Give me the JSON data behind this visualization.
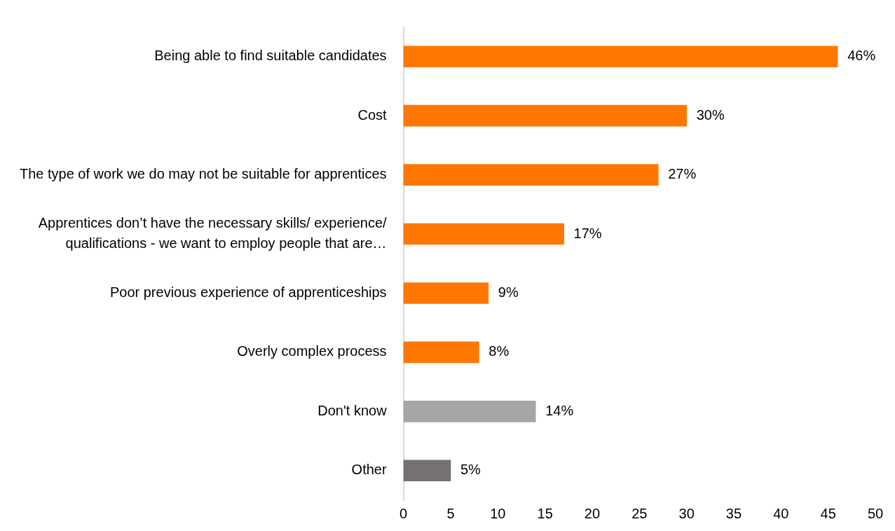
{
  "chart_data": {
    "type": "bar",
    "orientation": "horizontal",
    "categories": [
      "Being able to find suitable candidates",
      "Cost",
      "The type of work we do may not be suitable for apprentices",
      "Apprentices don’t have the necessary skills/ experience/ qualifications - we want to employ people that are…",
      "Poor previous experience of apprenticeships",
      "Overly complex process",
      "Don't know",
      "Other"
    ],
    "values": [
      46,
      30,
      27,
      17,
      9,
      8,
      14,
      5
    ],
    "colors": [
      "#ff7700",
      "#ff7700",
      "#ff7700",
      "#ff7700",
      "#ff7700",
      "#ff7700",
      "#a6a6a6",
      "#767171"
    ],
    "value_labels": [
      "46%",
      "30%",
      "27%",
      "17%",
      "9%",
      "8%",
      "14%",
      "5%"
    ],
    "xlim": [
      0,
      50
    ],
    "xticks": [
      0,
      5,
      10,
      15,
      20,
      25,
      30,
      35,
      40,
      45,
      50
    ],
    "grid": false,
    "legend": false
  }
}
